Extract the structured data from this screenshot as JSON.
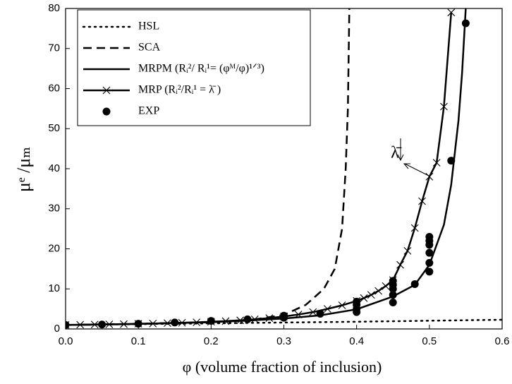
{
  "chart_data": {
    "type": "line",
    "xlabel": "φ (volume fraction of inclusion)",
    "ylabel": "μᵉ /μₘ",
    "annotation": "λ̄",
    "xlim": [
      0,
      0.6
    ],
    "ylim": [
      0,
      80
    ],
    "xticks": [
      {
        "value": 0,
        "label": "0.0"
      },
      0.1,
      0.2,
      0.3,
      0.4,
      0.5,
      0.6
    ],
    "yticks": [
      0,
      10,
      20,
      30,
      40,
      50,
      60,
      70,
      80
    ],
    "legend": "upper left",
    "series": [
      {
        "name": "HSL",
        "color": "#000000",
        "linestyle": "dotted",
        "marker": "none",
        "x": [
          0,
          0.1,
          0.2,
          0.3,
          0.4,
          0.5,
          0.6
        ],
        "values": [
          1,
          1.2,
          1.4,
          1.6,
          1.8,
          2.05,
          2.3
        ]
      },
      {
        "name": "SCA",
        "color": "#000000",
        "linestyle": "dashed",
        "marker": "none",
        "x": [
          0,
          0.1,
          0.2,
          0.25,
          0.3,
          0.33,
          0.355,
          0.37,
          0.38,
          0.385,
          0.388,
          0.39
        ],
        "values": [
          1,
          1.3,
          1.7,
          2.1,
          3.5,
          6,
          10,
          15,
          25,
          40,
          55,
          80
        ]
      },
      {
        "name": "MRPM (Rᵢ²/ Rᵢ¹= (φᴹ/φ)¹ᐟ³)",
        "color": "#000000",
        "linestyle": "solid",
        "marker": "none",
        "x": [
          0,
          0.05,
          0.1,
          0.15,
          0.2,
          0.25,
          0.3,
          0.35,
          0.4,
          0.45,
          0.48,
          0.5,
          0.52,
          0.53,
          0.54,
          0.545,
          0.55
        ],
        "values": [
          1,
          1.1,
          1.25,
          1.45,
          1.7,
          2.1,
          2.6,
          3.4,
          4.9,
          8.1,
          11,
          16,
          26,
          36,
          52,
          64,
          80
        ]
      },
      {
        "name": "MRP (Rᵢ²/Rᵢ¹ = λ̄ )",
        "color": "#000000",
        "linestyle": "solid",
        "marker": "x",
        "x": [
          0,
          0.02,
          0.04,
          0.06,
          0.08,
          0.1,
          0.12,
          0.14,
          0.16,
          0.18,
          0.2,
          0.22,
          0.24,
          0.26,
          0.28,
          0.3,
          0.32,
          0.34,
          0.36,
          0.38,
          0.4,
          0.41,
          0.42,
          0.43,
          0.44,
          0.45,
          0.46,
          0.47,
          0.48,
          0.49,
          0.5,
          0.51,
          0.52,
          0.53
        ],
        "values": [
          1,
          1.05,
          1.1,
          1.15,
          1.2,
          1.3,
          1.35,
          1.45,
          1.55,
          1.65,
          1.8,
          1.95,
          2.15,
          2.4,
          2.7,
          3.1,
          3.6,
          4.2,
          5,
          5.9,
          7,
          7.7,
          8.5,
          9.5,
          10.7,
          12.2,
          16,
          19.5,
          25.2,
          31.9,
          38,
          41.5,
          55.5,
          79
        ]
      },
      {
        "name": "EXP",
        "color": "#000000",
        "linestyle": "none",
        "marker": "o",
        "x": [
          0,
          0.05,
          0.1,
          0.15,
          0.2,
          0.25,
          0.3,
          0.3,
          0.35,
          0.4,
          0.4,
          0.4,
          0.4,
          0.45,
          0.45,
          0.45,
          0.45,
          0.45,
          0.48,
          0.5,
          0.5,
          0.5,
          0.5,
          0.5,
          0.5,
          0.53,
          0.55
        ],
        "values": [
          1,
          1.1,
          1.3,
          1.6,
          2,
          2.4,
          2.8,
          3.3,
          3.8,
          4.2,
          5,
          6,
          6.8,
          6.6,
          8.5,
          10,
          11,
          12,
          11.2,
          14.3,
          16.5,
          19,
          21,
          22,
          23,
          42,
          76.3
        ]
      }
    ]
  }
}
